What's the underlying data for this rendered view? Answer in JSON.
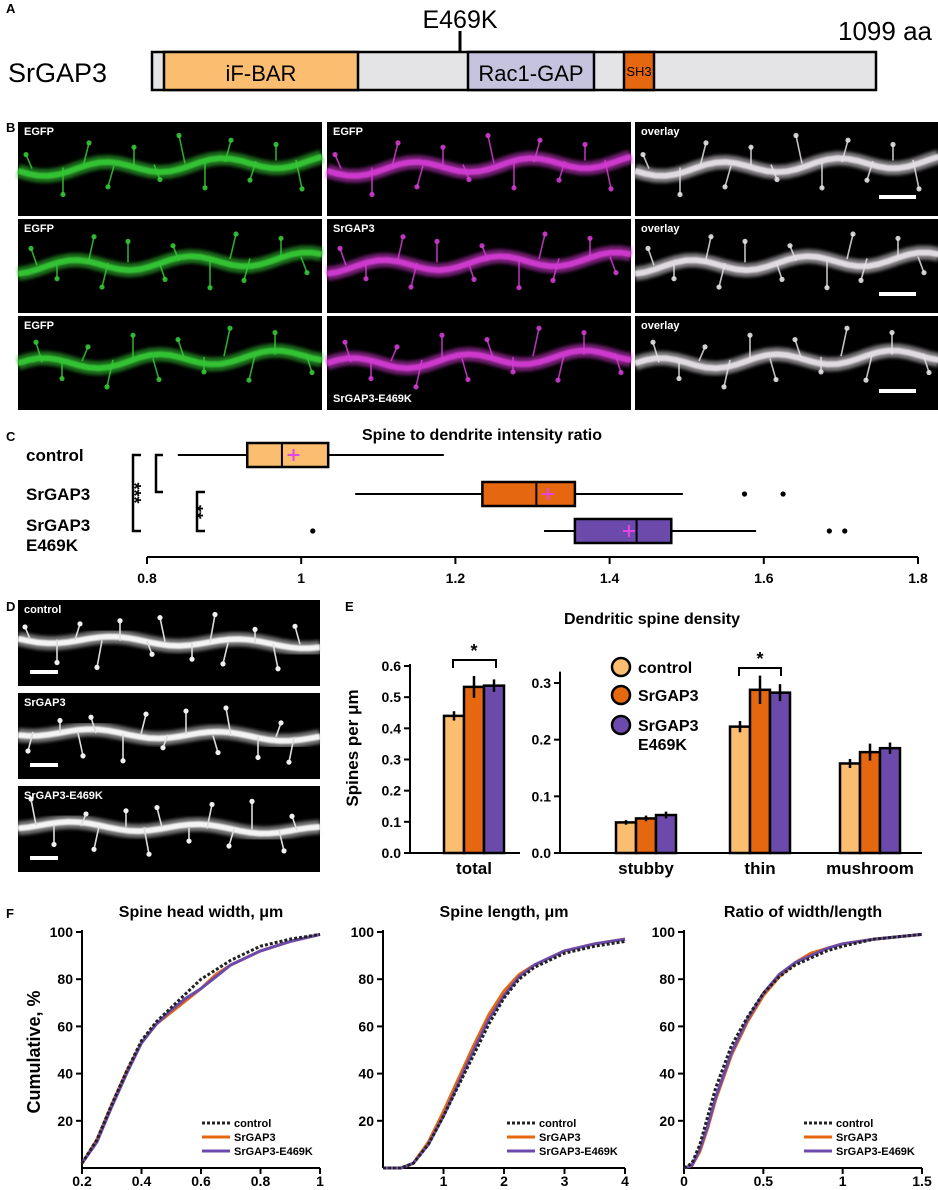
{
  "panel_labels": {
    "A": "A",
    "B": "B",
    "C": "C",
    "D": "D",
    "E": "E",
    "F": "F"
  },
  "colors": {
    "control": "#fbbd6f",
    "srgap3": "#e5670f",
    "e469k": "#6b4aab",
    "ifbar": "#fbbd6f",
    "rac1gap": "#c6c3df",
    "sh3": "#e5670f",
    "domain_bg": "#e4e4e6",
    "green": "#35c735",
    "magenta": "#d23bd2",
    "plus": "#e645e6"
  },
  "panelA": {
    "protein": "SrGAP3",
    "mutation": "E469K",
    "length_label": "1099 aa",
    "domains": [
      "iF-BAR",
      "Rac1-GAP",
      "SH3"
    ]
  },
  "panelB": {
    "rows": [
      [
        "EGFP",
        "EGFP",
        "overlay"
      ],
      [
        "EGFP",
        "SrGAP3",
        "overlay"
      ],
      [
        "EGFP",
        "SrGAP3-E469K",
        "overlay"
      ]
    ]
  },
  "panelD": {
    "labels": [
      "control",
      "SrGAP3",
      "SrGAP3-E469K"
    ]
  },
  "chart_data": [
    {
      "type": "box",
      "title": "Spine to dendrite intensity ratio",
      "orientation": "horizontal",
      "categories": [
        "control",
        "SrGAP3",
        "SrGAP3\nE469K"
      ],
      "category_lines": [
        [
          "control"
        ],
        [
          "SrGAP3"
        ],
        [
          "SrGAP3",
          "E469K"
        ]
      ],
      "xlim": [
        0.8,
        1.8
      ],
      "xticks": [
        0.8,
        1,
        1.2,
        1.4,
        1.6,
        1.8
      ],
      "xtick_labels": [
        "0.8",
        "1",
        "1.2",
        "1.4",
        "1.6",
        "1.8"
      ],
      "boxes": [
        {
          "name": "control",
          "whisker_low": 0.84,
          "q1": 0.93,
          "median": 0.975,
          "q3": 1.035,
          "whisker_high": 1.185,
          "mean": 0.99,
          "outliers": []
        },
        {
          "name": "SrGAP3",
          "whisker_low": 1.07,
          "q1": 1.235,
          "median": 1.305,
          "q3": 1.355,
          "whisker_high": 1.495,
          "mean": 1.32,
          "outliers": [
            1.575,
            1.625
          ]
        },
        {
          "name": "SrGAP3 E469K",
          "whisker_low": 1.315,
          "q1": 1.355,
          "median": 1.435,
          "q3": 1.48,
          "whisker_high": 1.59,
          "mean": 1.425,
          "outliers": [
            1.015,
            1.685,
            1.705
          ]
        }
      ],
      "significance": [
        {
          "between": [
            "control",
            "SrGAP3 E469K"
          ],
          "label": "***"
        },
        {
          "between": [
            "SrGAP3",
            "SrGAP3 E469K"
          ],
          "label": "**"
        }
      ]
    },
    {
      "type": "bar",
      "title": "Dendritic spine density",
      "ylabel": "Spines per μm",
      "groups": [
        {
          "category": "total",
          "ylim": [
            0,
            0.6
          ],
          "yticks": [
            0,
            0.1,
            0.2,
            0.3,
            0.4,
            0.5,
            0.6
          ],
          "ytick_labels": [
            "0.0",
            "0.1",
            "0.2",
            "0.3",
            "0.4",
            "0.5",
            "0.6"
          ],
          "values": [
            0.44,
            0.533,
            0.537
          ],
          "errors": [
            0.015,
            0.035,
            0.02
          ]
        },
        {
          "category": "stubby",
          "ylim": [
            0,
            0.33
          ],
          "yticks": [
            0,
            0.1,
            0.2,
            0.3
          ],
          "ytick_labels": [
            "0.0",
            "0.1",
            "0.2",
            "0.3"
          ],
          "values": [
            0.054,
            0.061,
            0.067
          ],
          "errors": [
            0.004,
            0.005,
            0.006
          ]
        },
        {
          "category": "thin",
          "ylim": [
            0,
            0.33
          ],
          "values": [
            0.223,
            0.288,
            0.283
          ],
          "errors": [
            0.01,
            0.025,
            0.015
          ]
        },
        {
          "category": "mushroom",
          "ylim": [
            0,
            0.33
          ],
          "values": [
            0.158,
            0.178,
            0.185
          ],
          "errors": [
            0.008,
            0.015,
            0.01
          ]
        }
      ],
      "series": [
        "control",
        "SrGAP3",
        "SrGAP3\nE469K"
      ],
      "legend_lines": [
        [
          "control"
        ],
        [
          "SrGAP3"
        ],
        [
          "SrGAP3",
          "E469K"
        ]
      ],
      "significance": [
        {
          "category": "total",
          "between": [
            "control",
            "SrGAP3 E469K"
          ],
          "label": "*"
        },
        {
          "category": "thin",
          "between": [
            "control",
            "SrGAP3 E469K"
          ],
          "label": "*"
        }
      ]
    },
    {
      "type": "line",
      "title": "Spine head width, μm",
      "ylabel": "Cumulative, %",
      "xlim": [
        0.2,
        1
      ],
      "xticks": [
        0.2,
        0.4,
        0.6,
        0.8,
        1
      ],
      "xtick_labels": [
        "0.2",
        "0.4",
        "0.6",
        "0.8",
        "1"
      ],
      "ylim": [
        0,
        100
      ],
      "yticks": [
        20,
        40,
        60,
        80,
        100
      ],
      "series": [
        {
          "name": "control",
          "style": "dotted",
          "x": [
            0.2,
            0.25,
            0.3,
            0.35,
            0.4,
            0.45,
            0.5,
            0.55,
            0.6,
            0.65,
            0.7,
            0.8,
            0.9,
            1.0
          ],
          "y": [
            2,
            12,
            27,
            41,
            54,
            62,
            68,
            74,
            80,
            84,
            88,
            94,
            97,
            99
          ]
        },
        {
          "name": "SrGAP3",
          "style": "solid",
          "x": [
            0.2,
            0.25,
            0.3,
            0.35,
            0.4,
            0.45,
            0.5,
            0.55,
            0.6,
            0.65,
            0.7,
            0.8,
            0.9,
            1.0
          ],
          "y": [
            2,
            12,
            27,
            41,
            53,
            61,
            66,
            71,
            76,
            82,
            86,
            92,
            96,
            99
          ]
        },
        {
          "name": "SrGAP3-E469K",
          "style": "solid",
          "x": [
            0.2,
            0.25,
            0.3,
            0.35,
            0.4,
            0.45,
            0.5,
            0.55,
            0.6,
            0.65,
            0.7,
            0.8,
            0.9,
            1.0
          ],
          "y": [
            2,
            11,
            26,
            40,
            53,
            61,
            67,
            72,
            76,
            81,
            86,
            92,
            96,
            99
          ]
        }
      ]
    },
    {
      "type": "line",
      "title": "Spine length, μm",
      "ylabel": "",
      "xlim": [
        0,
        4
      ],
      "xticks": [
        1,
        2,
        3,
        4
      ],
      "xtick_labels": [
        "1",
        "2",
        "3",
        "4"
      ],
      "ylim": [
        0,
        100
      ],
      "yticks": [
        20,
        40,
        60,
        80,
        100
      ],
      "series": [
        {
          "name": "control",
          "style": "dotted",
          "x": [
            0,
            0.3,
            0.5,
            0.75,
            1.0,
            1.25,
            1.5,
            1.75,
            2.0,
            2.25,
            2.5,
            3.0,
            3.5,
            4.0
          ],
          "y": [
            0,
            0,
            2,
            10,
            22,
            35,
            48,
            61,
            72,
            80,
            85,
            91,
            94,
            96
          ]
        },
        {
          "name": "SrGAP3",
          "style": "solid",
          "x": [
            0,
            0.3,
            0.5,
            0.75,
            1.0,
            1.25,
            1.5,
            1.75,
            2.0,
            2.25,
            2.5,
            3.0,
            3.5,
            4.0
          ],
          "y": [
            0,
            0,
            2,
            11,
            24,
            38,
            52,
            65,
            75,
            82,
            86,
            92,
            95,
            97
          ]
        },
        {
          "name": "SrGAP3-E469K",
          "style": "solid",
          "x": [
            0,
            0.3,
            0.5,
            0.75,
            1.0,
            1.25,
            1.5,
            1.75,
            2.0,
            2.25,
            2.5,
            3.0,
            3.5,
            4.0
          ],
          "y": [
            0,
            0,
            2,
            10,
            22,
            36,
            50,
            63,
            73,
            81,
            86,
            92,
            95,
            97
          ]
        }
      ]
    },
    {
      "type": "line",
      "title": "Ratio of width/length",
      "ylabel": "",
      "xlim": [
        0,
        1.5
      ],
      "xticks": [
        0,
        0.5,
        1,
        1.5
      ],
      "xtick_labels": [
        "0",
        "0.5",
        "1",
        "1.5"
      ],
      "ylim": [
        0,
        100
      ],
      "yticks": [
        20,
        40,
        60,
        80,
        100
      ],
      "series": [
        {
          "name": "control",
          "style": "dotted",
          "x": [
            0,
            0.05,
            0.1,
            0.15,
            0.2,
            0.3,
            0.4,
            0.5,
            0.6,
            0.7,
            0.8,
            0.9,
            1.0,
            1.2,
            1.5
          ],
          "y": [
            0,
            2,
            10,
            22,
            34,
            52,
            64,
            74,
            81,
            86,
            89,
            92,
            94,
            97,
            99
          ]
        },
        {
          "name": "SrGAP3",
          "style": "solid",
          "x": [
            0,
            0.05,
            0.1,
            0.15,
            0.2,
            0.3,
            0.4,
            0.5,
            0.6,
            0.7,
            0.8,
            0.9,
            1.0,
            1.2,
            1.5
          ],
          "y": [
            0,
            1,
            7,
            17,
            29,
            48,
            62,
            73,
            81,
            87,
            91,
            93,
            95,
            97,
            99
          ]
        },
        {
          "name": "SrGAP3-E469K",
          "style": "solid",
          "x": [
            0,
            0.05,
            0.1,
            0.15,
            0.2,
            0.3,
            0.4,
            0.5,
            0.6,
            0.7,
            0.8,
            0.9,
            1.0,
            1.2,
            1.5
          ],
          "y": [
            0,
            1,
            8,
            18,
            30,
            49,
            63,
            74,
            82,
            87,
            90,
            93,
            95,
            97,
            99
          ]
        }
      ]
    }
  ]
}
